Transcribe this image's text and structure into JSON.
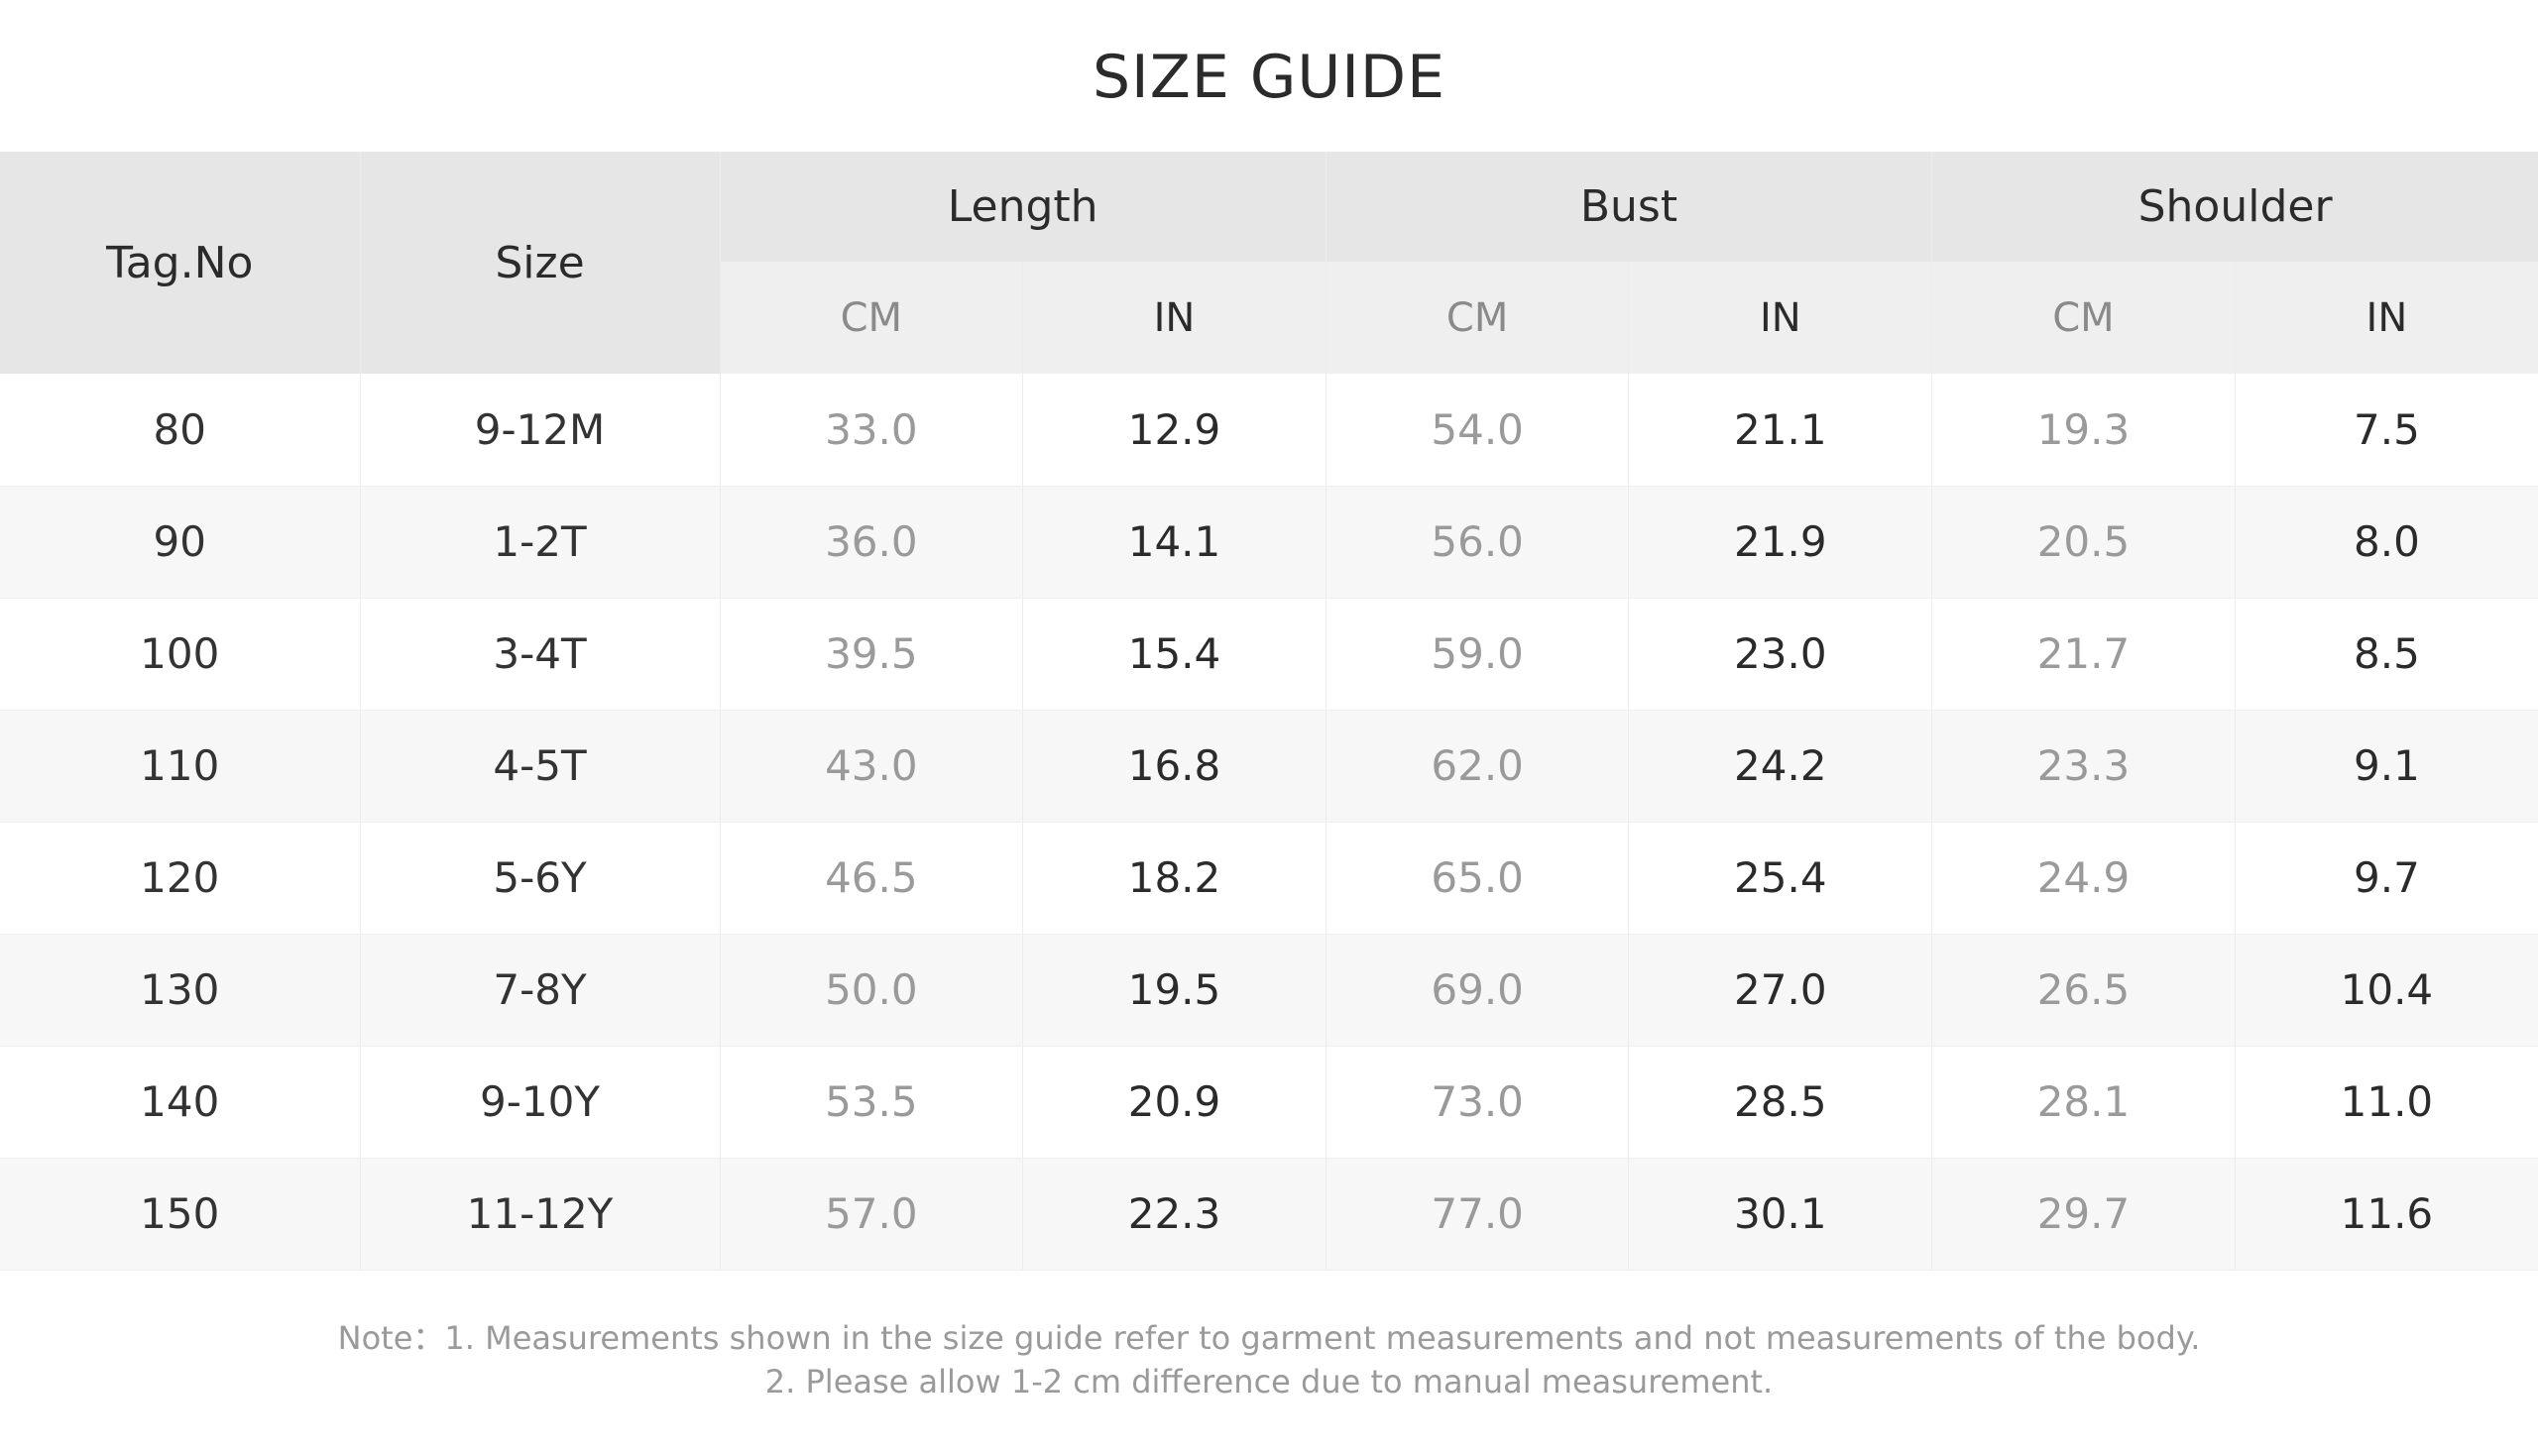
{
  "title": "SIZE GUIDE",
  "headers": {
    "tag": "Tag.No",
    "size": "Size",
    "groups": [
      "Length",
      "Bust",
      "Shoulder"
    ],
    "units": [
      "CM",
      "IN",
      "CM",
      "IN",
      "CM",
      "IN"
    ]
  },
  "rows": [
    {
      "tag": "80",
      "size": "9-12M",
      "length_cm": "33.0",
      "length_in": "12.9",
      "bust_cm": "54.0",
      "bust_in": "21.1",
      "shoulder_cm": "19.3",
      "shoulder_in": "7.5"
    },
    {
      "tag": "90",
      "size": "1-2T",
      "length_cm": "36.0",
      "length_in": "14.1",
      "bust_cm": "56.0",
      "bust_in": "21.9",
      "shoulder_cm": "20.5",
      "shoulder_in": "8.0"
    },
    {
      "tag": "100",
      "size": "3-4T",
      "length_cm": "39.5",
      "length_in": "15.4",
      "bust_cm": "59.0",
      "bust_in": "23.0",
      "shoulder_cm": "21.7",
      "shoulder_in": "8.5"
    },
    {
      "tag": "110",
      "size": "4-5T",
      "length_cm": "43.0",
      "length_in": "16.8",
      "bust_cm": "62.0",
      "bust_in": "24.2",
      "shoulder_cm": "23.3",
      "shoulder_in": "9.1"
    },
    {
      "tag": "120",
      "size": "5-6Y",
      "length_cm": "46.5",
      "length_in": "18.2",
      "bust_cm": "65.0",
      "bust_in": "25.4",
      "shoulder_cm": "24.9",
      "shoulder_in": "9.7"
    },
    {
      "tag": "130",
      "size": "7-8Y",
      "length_cm": "50.0",
      "length_in": "19.5",
      "bust_cm": "69.0",
      "bust_in": "27.0",
      "shoulder_cm": "26.5",
      "shoulder_in": "10.4"
    },
    {
      "tag": "140",
      "size": "9-10Y",
      "length_cm": "53.5",
      "length_in": "20.9",
      "bust_cm": "73.0",
      "bust_in": "28.5",
      "shoulder_cm": "28.1",
      "shoulder_in": "11.0"
    },
    {
      "tag": "150",
      "size": "11-12Y",
      "length_cm": "57.0",
      "length_in": "22.3",
      "bust_cm": "77.0",
      "bust_in": "30.1",
      "shoulder_cm": "29.7",
      "shoulder_in": "11.6"
    }
  ],
  "note": {
    "line1": "Note：1. Measurements shown in the size guide refer to garment measurements and not measurements of the body.",
    "line2": "2. Please allow 1-2 cm difference due to manual measurement."
  },
  "colors": {
    "header_bg": "#e6e6e6",
    "subheader_bg": "#efefef",
    "row_alt_bg": "#f7f7f7",
    "cm_text": "#9a9a9a",
    "in_text": "#2b2b2b"
  }
}
